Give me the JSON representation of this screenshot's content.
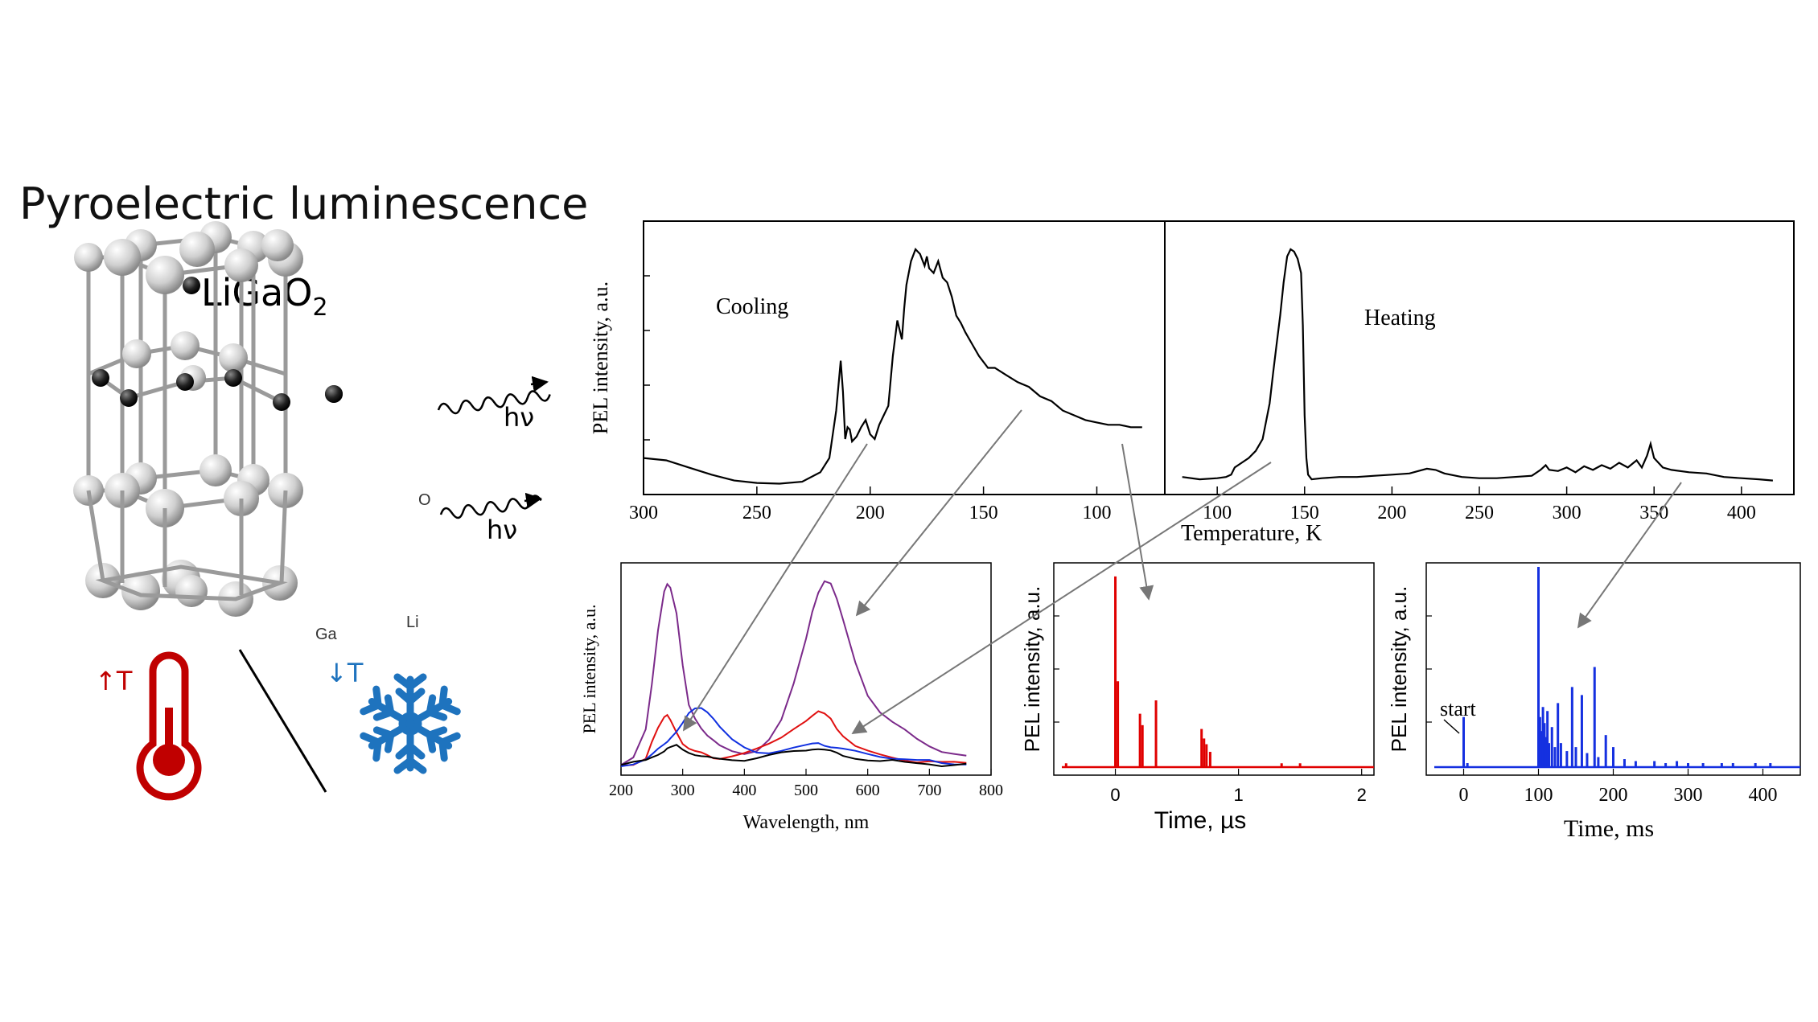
{
  "title": "Pyroelectric luminescence",
  "crystal": {
    "formula_main": "LiGaO",
    "formula_sub": "2",
    "atom_labels": [
      "O",
      "Ga",
      "Li"
    ],
    "photon_label": "hν",
    "heat_label": "↑T",
    "cool_label": "↓T",
    "icons": [
      "thermometer-icon",
      "snowflake-icon"
    ],
    "heat_color": "#c00000",
    "cool_color": "#1e73be"
  },
  "chart_data": [
    {
      "id": "temperature",
      "type": "line",
      "ylabel": "PEL intensity, a.u.",
      "xlabel": "Temperature, K",
      "panels": [
        {
          "label": "Cooling",
          "xlim": [
            300,
            70
          ],
          "xticks": [
            300,
            250,
            200,
            150,
            100
          ],
          "x": [
            300,
            290,
            280,
            270,
            260,
            250,
            240,
            230,
            222,
            218,
            215,
            213,
            212,
            211,
            210,
            209,
            208,
            207,
            206,
            204,
            202,
            200,
            198,
            196,
            194,
            192,
            190,
            188,
            186,
            185,
            184,
            182,
            180,
            178,
            176,
            175,
            174,
            172,
            170,
            168,
            166,
            164,
            162,
            160,
            158,
            155,
            152,
            148,
            145,
            140,
            135,
            130,
            125,
            120,
            115,
            110,
            105,
            100,
            95,
            90,
            85,
            80
          ],
          "y": [
            0.12,
            0.11,
            0.08,
            0.05,
            0.025,
            0.015,
            0.012,
            0.02,
            0.06,
            0.12,
            0.32,
            0.53,
            0.4,
            0.2,
            0.25,
            0.24,
            0.19,
            0.2,
            0.21,
            0.25,
            0.28,
            0.22,
            0.2,
            0.26,
            0.3,
            0.34,
            0.55,
            0.7,
            0.62,
            0.75,
            0.85,
            0.95,
            1.0,
            0.98,
            0.93,
            0.97,
            0.92,
            0.9,
            0.95,
            0.88,
            0.86,
            0.8,
            0.72,
            0.69,
            0.65,
            0.6,
            0.55,
            0.5,
            0.5,
            0.47,
            0.44,
            0.42,
            0.38,
            0.36,
            0.32,
            0.3,
            0.28,
            0.27,
            0.26,
            0.26,
            0.25,
            0.25
          ]
        },
        {
          "label": "Heating",
          "xlim": [
            70,
            430
          ],
          "xticks": [
            100,
            150,
            200,
            250,
            300,
            350,
            400
          ],
          "x": [
            80,
            90,
            100,
            105,
            108,
            110,
            114,
            118,
            122,
            126,
            130,
            132,
            134,
            136,
            138,
            140,
            142,
            144,
            146,
            148,
            149,
            150,
            151,
            152,
            154,
            160,
            170,
            180,
            190,
            200,
            210,
            215,
            220,
            225,
            230,
            240,
            250,
            260,
            270,
            280,
            285,
            288,
            290,
            295,
            300,
            305,
            310,
            315,
            320,
            325,
            330,
            335,
            340,
            343,
            346,
            348,
            350,
            355,
            360,
            370,
            380,
            390,
            400,
            410,
            418
          ],
          "y": [
            0.04,
            0.03,
            0.035,
            0.04,
            0.05,
            0.08,
            0.1,
            0.12,
            0.15,
            0.2,
            0.35,
            0.48,
            0.6,
            0.72,
            0.86,
            0.97,
            1.0,
            0.99,
            0.96,
            0.9,
            0.68,
            0.3,
            0.12,
            0.05,
            0.03,
            0.035,
            0.04,
            0.04,
            0.045,
            0.05,
            0.055,
            0.065,
            0.075,
            0.07,
            0.055,
            0.04,
            0.035,
            0.035,
            0.04,
            0.045,
            0.07,
            0.09,
            0.07,
            0.065,
            0.08,
            0.06,
            0.085,
            0.07,
            0.09,
            0.075,
            0.1,
            0.08,
            0.11,
            0.08,
            0.13,
            0.18,
            0.12,
            0.08,
            0.07,
            0.06,
            0.055,
            0.04,
            0.035,
            0.03,
            0.025
          ]
        }
      ]
    },
    {
      "id": "spectra",
      "type": "line",
      "ylabel": "PEL intensity, a.u.",
      "xlabel": "Wavelength, nm",
      "xlim": [
        200,
        800
      ],
      "xticks": [
        200,
        300,
        400,
        500,
        600,
        700,
        800
      ],
      "ylim": [
        0,
        1.05
      ],
      "x": [
        200,
        220,
        240,
        250,
        260,
        270,
        275,
        280,
        290,
        300,
        310,
        320,
        330,
        340,
        350,
        360,
        380,
        400,
        420,
        440,
        460,
        480,
        500,
        510,
        520,
        530,
        540,
        550,
        560,
        580,
        600,
        620,
        640,
        660,
        680,
        700,
        720,
        740,
        760
      ],
      "series": [
        {
          "color": "#7b2a8a",
          "values": [
            0.02,
            0.05,
            0.2,
            0.45,
            0.75,
            0.96,
            0.99,
            0.96,
            0.82,
            0.55,
            0.35,
            0.28,
            0.22,
            0.17,
            0.14,
            0.12,
            0.1,
            0.09,
            0.1,
            0.15,
            0.25,
            0.45,
            0.7,
            0.85,
            0.95,
            1.0,
            0.98,
            0.9,
            0.8,
            0.58,
            0.4,
            0.3,
            0.24,
            0.2,
            0.16,
            0.13,
            0.1,
            0.08,
            0.06
          ]
        },
        {
          "color": "#e01010",
          "values": [
            0.01,
            0.02,
            0.06,
            0.15,
            0.22,
            0.27,
            0.28,
            0.26,
            0.2,
            0.14,
            0.11,
            0.09,
            0.08,
            0.07,
            0.06,
            0.06,
            0.07,
            0.08,
            0.1,
            0.13,
            0.17,
            0.22,
            0.26,
            0.28,
            0.3,
            0.29,
            0.27,
            0.22,
            0.18,
            0.12,
            0.09,
            0.07,
            0.06,
            0.05,
            0.04,
            0.04,
            0.03,
            0.03,
            0.03
          ]
        },
        {
          "color": "#1030e0",
          "values": [
            0.02,
            0.03,
            0.05,
            0.07,
            0.1,
            0.13,
            0.15,
            0.17,
            0.2,
            0.24,
            0.29,
            0.32,
            0.33,
            0.31,
            0.27,
            0.22,
            0.15,
            0.11,
            0.09,
            0.09,
            0.1,
            0.11,
            0.12,
            0.13,
            0.14,
            0.13,
            0.12,
            0.11,
            0.1,
            0.09,
            0.08,
            0.07,
            0.06,
            0.05,
            0.04,
            0.04,
            0.03,
            0.03,
            0.03
          ]
        },
        {
          "color": "#000000",
          "values": [
            0.02,
            0.03,
            0.04,
            0.06,
            0.08,
            0.1,
            0.11,
            0.11,
            0.12,
            0.1,
            0.09,
            0.08,
            0.07,
            0.06,
            0.05,
            0.05,
            0.05,
            0.05,
            0.06,
            0.07,
            0.08,
            0.09,
            0.1,
            0.11,
            0.11,
            0.1,
            0.09,
            0.08,
            0.07,
            0.06,
            0.05,
            0.04,
            0.04,
            0.03,
            0.03,
            0.03,
            0.02,
            0.02,
            0.02
          ]
        }
      ]
    },
    {
      "id": "time-us",
      "type": "bar",
      "ylabel": "PEL intensity, a.u.",
      "xlabel": "Time, µs",
      "xlim": [
        -0.5,
        2.1
      ],
      "xticks": [
        0,
        1,
        2
      ],
      "ylim": [
        0,
        1.05
      ],
      "color": "#e00000",
      "x": [
        -0.4,
        0.0,
        0.02,
        0.2,
        0.22,
        0.33,
        0.7,
        0.72,
        0.74,
        0.77,
        1.35,
        1.5
      ],
      "values": [
        0.02,
        1.0,
        0.45,
        0.28,
        0.22,
        0.35,
        0.2,
        0.15,
        0.12,
        0.08,
        0.02,
        0.02
      ]
    },
    {
      "id": "time-ms",
      "type": "bar",
      "ylabel": "PEL intensity, a.u.",
      "xlabel": "Time, ms",
      "xlim": [
        -50,
        450
      ],
      "xticks": [
        0,
        100,
        200,
        300,
        400
      ],
      "ylim": [
        0,
        1.0
      ],
      "color": "#1530e0",
      "annotation": "start",
      "x": [
        0,
        5,
        100,
        102,
        104,
        106,
        108,
        110,
        112,
        114,
        118,
        122,
        126,
        130,
        138,
        145,
        150,
        158,
        165,
        175,
        180,
        190,
        200,
        215,
        230,
        255,
        270,
        285,
        300,
        320,
        345,
        360,
        390,
        410
      ],
      "values": [
        0.25,
        0.02,
        1.0,
        0.25,
        0.18,
        0.3,
        0.22,
        0.15,
        0.28,
        0.12,
        0.2,
        0.1,
        0.32,
        0.12,
        0.08,
        0.4,
        0.1,
        0.36,
        0.07,
        0.5,
        0.05,
        0.16,
        0.1,
        0.04,
        0.03,
        0.03,
        0.02,
        0.03,
        0.02,
        0.02,
        0.02,
        0.02,
        0.02,
        0.02
      ]
    }
  ]
}
